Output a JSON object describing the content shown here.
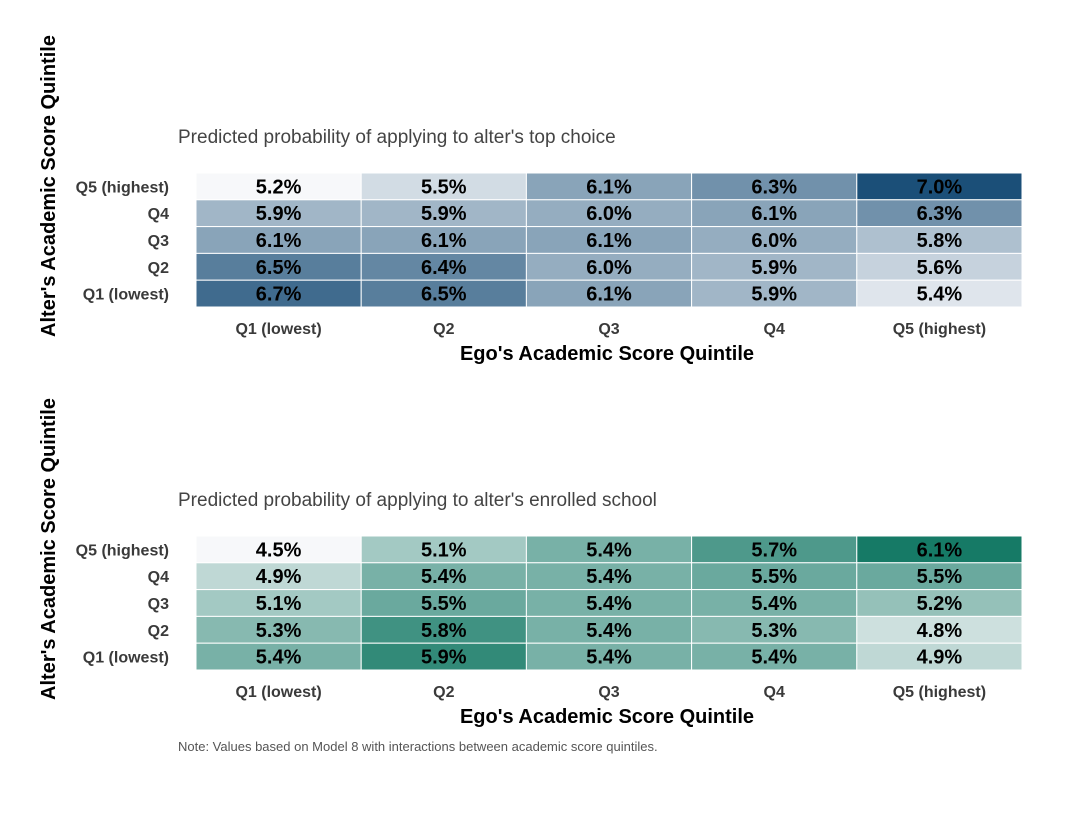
{
  "chart_data": [
    {
      "type": "heatmap",
      "title": "Predicted probability of applying to alter's top choice",
      "xlabel": "Ego's Academic Score Quintile",
      "ylabel": "Alter's Academic Score Quintile",
      "x_categories": [
        "Q1 (lowest)",
        "Q2",
        "Q3",
        "Q4",
        "Q5 (highest)"
      ],
      "y_categories": [
        "Q5 (highest)",
        "Q4",
        "Q3",
        "Q2",
        "Q1 (lowest)"
      ],
      "values": [
        [
          5.2,
          5.5,
          6.1,
          6.3,
          7.0
        ],
        [
          5.9,
          5.9,
          6.0,
          6.1,
          6.3
        ],
        [
          6.1,
          6.1,
          6.1,
          6.0,
          5.8
        ],
        [
          6.5,
          6.4,
          6.0,
          5.9,
          5.6
        ],
        [
          6.7,
          6.5,
          6.1,
          5.9,
          5.4
        ]
      ],
      "labels": [
        [
          "5.2%",
          "5.5%",
          "6.1%",
          "6.3%",
          "7.0%"
        ],
        [
          "5.9%",
          "5.9%",
          "6.0%",
          "6.1%",
          "6.3%"
        ],
        [
          "6.1%",
          "6.1%",
          "6.1%",
          "6.0%",
          "5.8%"
        ],
        [
          "6.5%",
          "6.4%",
          "6.0%",
          "5.9%",
          "5.6%"
        ],
        [
          "6.7%",
          "6.5%",
          "6.1%",
          "5.9%",
          "5.4%"
        ]
      ],
      "color_low": "#f7f8fa",
      "color_high": "#1b4f78"
    },
    {
      "type": "heatmap",
      "title": "Predicted probability of applying to alter's enrolled school",
      "xlabel": "Ego's Academic Score Quintile",
      "ylabel": "Alter's Academic Score Quintile",
      "x_categories": [
        "Q1 (lowest)",
        "Q2",
        "Q3",
        "Q4",
        "Q5 (highest)"
      ],
      "y_categories": [
        "Q5 (highest)",
        "Q4",
        "Q3",
        "Q2",
        "Q1 (lowest)"
      ],
      "values": [
        [
          4.5,
          5.1,
          5.4,
          5.7,
          6.1
        ],
        [
          4.9,
          5.4,
          5.4,
          5.5,
          5.5
        ],
        [
          5.1,
          5.5,
          5.4,
          5.4,
          5.2
        ],
        [
          5.3,
          5.8,
          5.4,
          5.3,
          4.8
        ],
        [
          5.4,
          5.9,
          5.4,
          5.4,
          4.9
        ]
      ],
      "labels": [
        [
          "4.5%",
          "5.1%",
          "5.4%",
          "5.7%",
          "6.1%"
        ],
        [
          "4.9%",
          "5.4%",
          "5.4%",
          "5.5%",
          "5.5%"
        ],
        [
          "5.1%",
          "5.5%",
          "5.4%",
          "5.4%",
          "5.2%"
        ],
        [
          "5.3%",
          "5.8%",
          "5.4%",
          "5.3%",
          "4.8%"
        ],
        [
          "5.4%",
          "5.9%",
          "5.4%",
          "5.4%",
          "4.9%"
        ]
      ],
      "color_low": "#f7f8fa",
      "color_high": "#167a66"
    }
  ],
  "note": "Note: Values based on Model 8 with interactions between academic score quintiles."
}
